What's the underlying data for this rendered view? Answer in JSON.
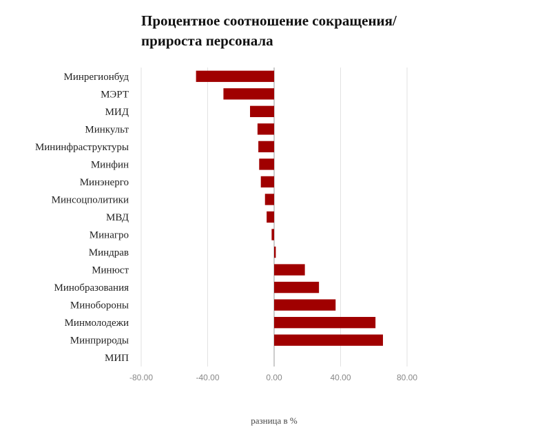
{
  "chart_data": {
    "type": "bar",
    "orientation": "horizontal",
    "title_line1": "Процентное соотношение сокращения/",
    "title_line2": "прироста персонала",
    "xlabel": "разница в %",
    "ylabel": "",
    "xlim": [
      -80,
      80
    ],
    "xticks": [
      "-80.00",
      "-40.00",
      "0.00",
      "40.00",
      "80.00"
    ],
    "grid": "vertical",
    "bar_color": "#a00000",
    "categories": [
      "Минрегионбуд",
      "МЭРТ",
      "МИД",
      "Минкульт",
      "Мининфраструктуры",
      "Минфин",
      "Минэнерго",
      "Минсоцполитики",
      "МВД",
      "Минагро",
      "Миндрав",
      "Минюст",
      "Минобразования",
      "Минобороны",
      "Минмолодежи",
      "Минприроды",
      "МИП"
    ],
    "values": [
      -47,
      -30.5,
      -14.5,
      -10,
      -9.5,
      -9,
      -8,
      -5.5,
      -4.5,
      -1.5,
      1,
      18.5,
      27,
      37,
      61,
      65.5,
      0
    ]
  }
}
